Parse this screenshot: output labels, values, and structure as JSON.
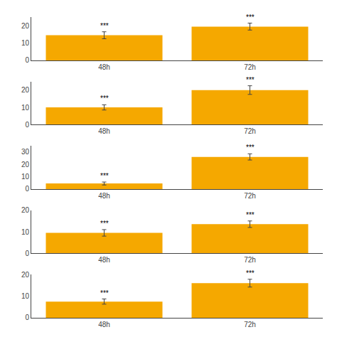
{
  "chart_data": [
    {
      "type": "bar",
      "categories": [
        "48h",
        "72h"
      ],
      "values": [
        14.5,
        19.5
      ],
      "errors": [
        2.0,
        2.0
      ],
      "annotations": [
        "***",
        "***"
      ],
      "color": "#F5A800",
      "ylim": [
        0,
        25
      ],
      "yticks": [
        0,
        10,
        20
      ],
      "grid": false
    },
    {
      "type": "bar",
      "categories": [
        "48h",
        "72h"
      ],
      "values": [
        10.0,
        20.0
      ],
      "errors": [
        1.5,
        2.5
      ],
      "annotations": [
        "***",
        "***"
      ],
      "color": "#F5A800",
      "ylim": [
        0,
        25
      ],
      "yticks": [
        0,
        10,
        20
      ],
      "grid": false
    },
    {
      "type": "bar",
      "categories": [
        "48h",
        "72h"
      ],
      "values": [
        4.5,
        26.0
      ],
      "errors": [
        1.2,
        2.5
      ],
      "annotations": [
        "***",
        "***"
      ],
      "color": "#F5A800",
      "ylim": [
        0,
        35
      ],
      "yticks": [
        0,
        10,
        20,
        30
      ],
      "grid": false
    },
    {
      "type": "bar",
      "categories": [
        "48h",
        "72h"
      ],
      "values": [
        9.5,
        13.5
      ],
      "errors": [
        1.5,
        1.5
      ],
      "annotations": [
        "***",
        "***"
      ],
      "color": "#F5A800",
      "ylim": [
        0,
        20
      ],
      "yticks": [
        0,
        10,
        20
      ],
      "grid": false
    },
    {
      "type": "bar",
      "categories": [
        "48h",
        "72h"
      ],
      "values": [
        7.5,
        16.0
      ],
      "errors": [
        1.2,
        1.8
      ],
      "annotations": [
        "***",
        "***"
      ],
      "color": "#F5A800",
      "ylim": [
        0,
        20
      ],
      "yticks": [
        0,
        10,
        20
      ],
      "grid": false
    }
  ]
}
